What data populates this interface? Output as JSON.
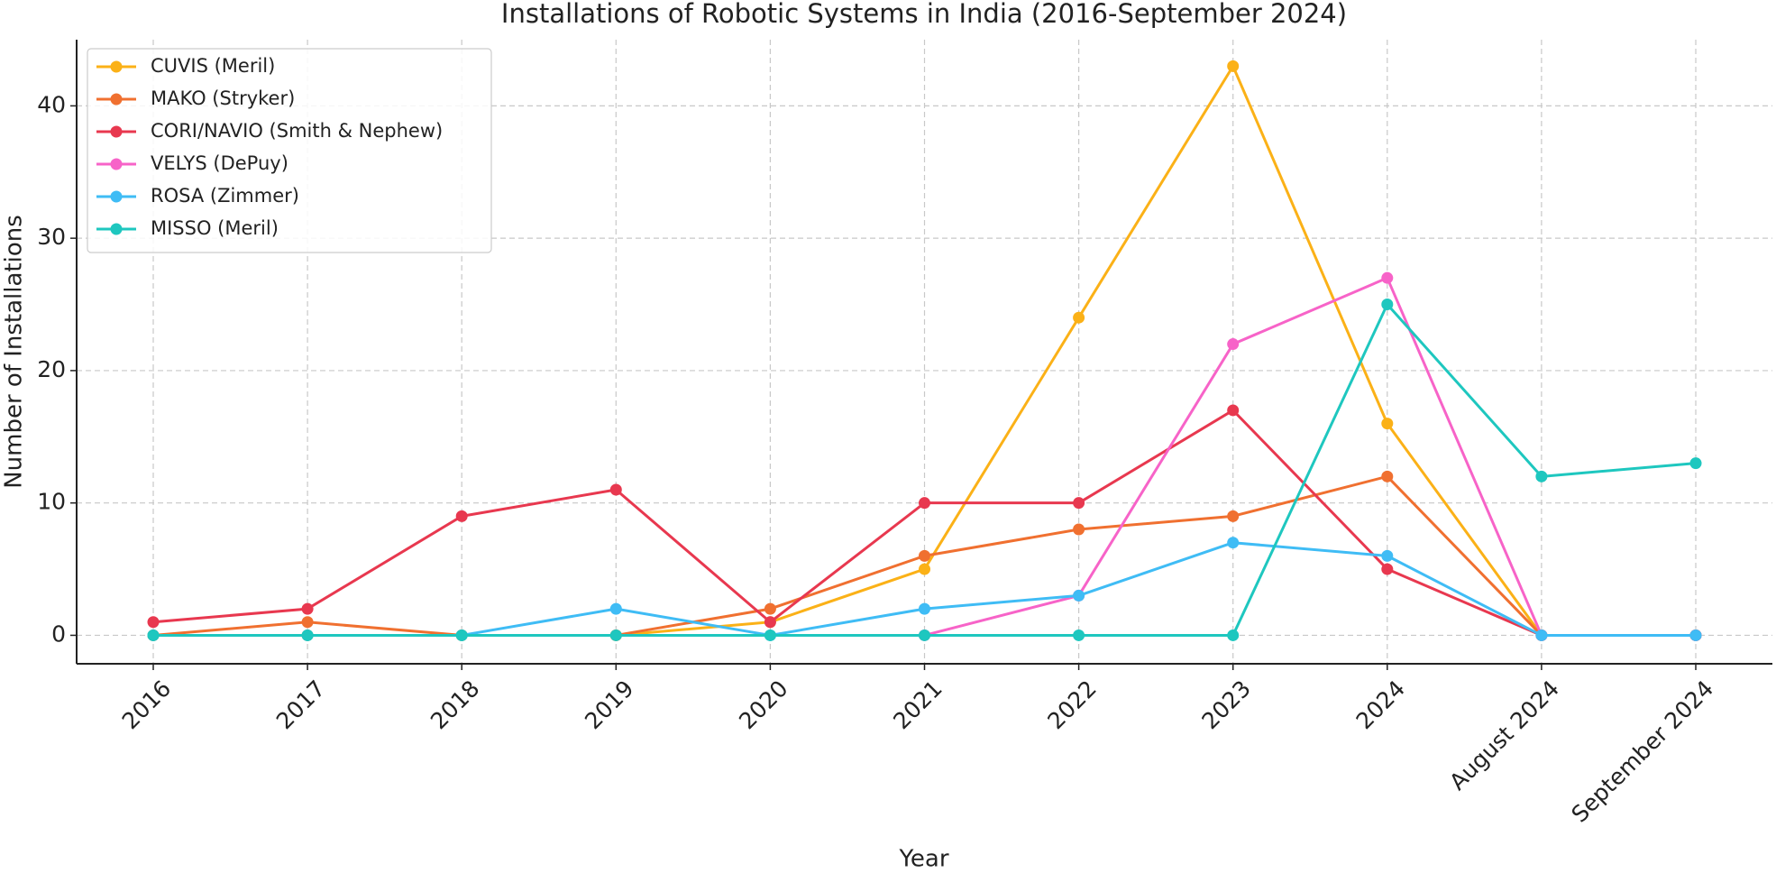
{
  "chart_data": {
    "type": "line",
    "title": "Installations of Robotic Systems in India (2016-September 2024)",
    "x_label": "Year",
    "y_label": "Number of Installations",
    "categories": [
      "2016",
      "2017",
      "2018",
      "2019",
      "2020",
      "2021",
      "2022",
      "2023",
      "2024",
      "August 2024",
      "September 2024"
    ],
    "series": [
      {
        "name": "CUVIS (Meril)",
        "color": "#fbb117",
        "values": [
          0,
          0,
          0,
          0,
          1,
          5,
          24,
          43,
          16,
          0,
          0
        ]
      },
      {
        "name": "MAKO (Stryker)",
        "color": "#f07030",
        "values": [
          0,
          1,
          0,
          0,
          2,
          6,
          8,
          9,
          12,
          0,
          0
        ]
      },
      {
        "name": "CORI/NAVIO (Smith & Nephew)",
        "color": "#e8384f",
        "values": [
          1,
          2,
          9,
          11,
          1,
          10,
          10,
          17,
          5,
          0,
          0
        ]
      },
      {
        "name": "VELYS (DePuy)",
        "color": "#f763c8",
        "values": [
          null,
          null,
          null,
          null,
          null,
          0,
          3,
          22,
          27,
          0,
          0
        ]
      },
      {
        "name": "ROSA (Zimmer)",
        "color": "#3fbcf5",
        "values": [
          0,
          0,
          0,
          2,
          0,
          2,
          3,
          7,
          6,
          0,
          0
        ]
      },
      {
        "name": "MISSO (Meril)",
        "color": "#1ec7bf",
        "values": [
          0,
          0,
          0,
          0,
          0,
          0,
          0,
          0,
          25,
          12,
          13
        ]
      }
    ],
    "ylim": [
      -2.15,
      45
    ],
    "yticks": [
      0,
      10,
      20,
      30,
      40
    ],
    "grid": true,
    "legend": "upper left"
  }
}
